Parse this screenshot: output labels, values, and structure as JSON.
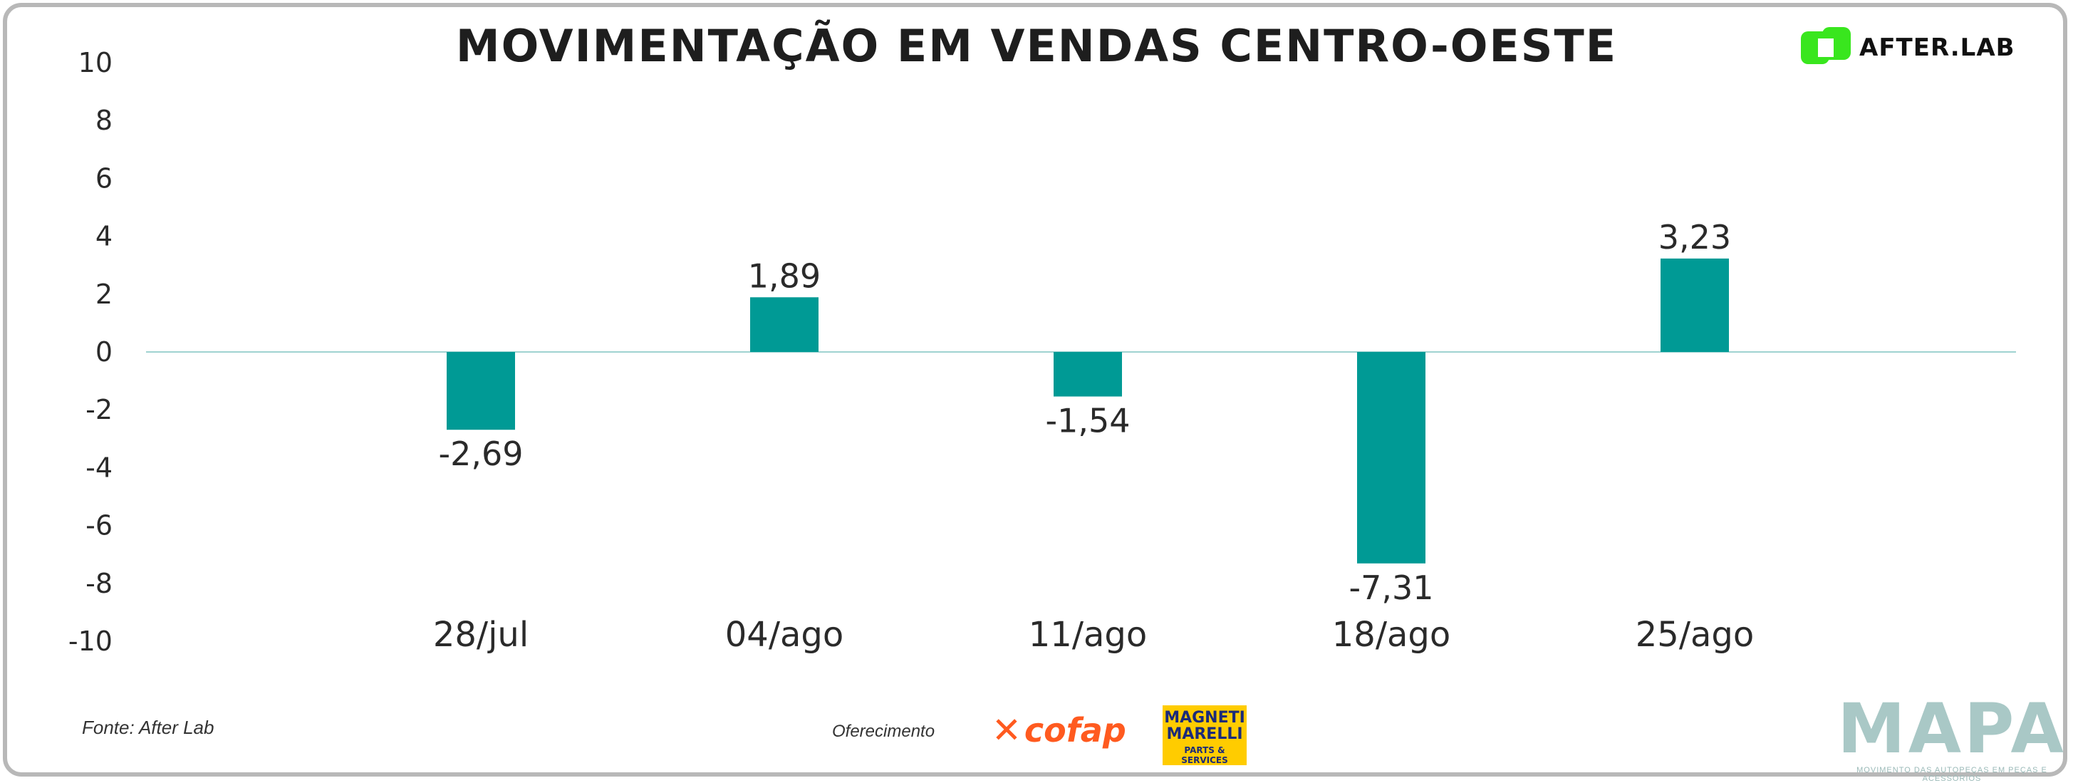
{
  "title": "MOVIMENTAÇÃO EM VENDAS CENTRO-OESTE",
  "brand": {
    "name": "AFTER.LAB",
    "color": "#39e61e"
  },
  "source": "Fonte: After Lab",
  "sponsors": {
    "label": "Oferecimento",
    "cofap": "cofap",
    "magneti_line1": "MAGNETI",
    "magneti_line2": "MARELLI",
    "magneti_line3": "PARTS & SERVICES"
  },
  "footer": {
    "mapa": "MAPA",
    "mapa_tagline": "MOVIMENTO DAS AUTOPEÇAS EM PEÇAS E ACESSÓRIOS"
  },
  "chart_data": {
    "type": "bar",
    "title": "MOVIMENTAÇÃO EM VENDAS CENTRO-OESTE",
    "categories": [
      "28/jul",
      "04/ago",
      "11/ago",
      "18/ago",
      "25/ago"
    ],
    "values": [
      -2.69,
      1.89,
      -1.54,
      -7.31,
      3.23
    ],
    "value_labels": [
      "-2,69",
      "1,89",
      "-1,54",
      "-7,31",
      "3,23"
    ],
    "ylim": [
      -10,
      10
    ],
    "yticks": [
      -10,
      -8,
      -6,
      -4,
      -2,
      0,
      2,
      4,
      6,
      8,
      10
    ],
    "xlabel": "",
    "ylabel": "",
    "grid": false,
    "bar_color": "#009a95",
    "zero_line_color": "#9fd3d1"
  }
}
